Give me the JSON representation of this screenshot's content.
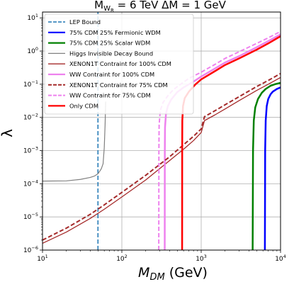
{
  "chart_data": {
    "type": "line",
    "title": {
      "prefix": "M",
      "subscript": "W",
      "subsubscript": "R",
      "mid": " = 6 TeV  ΔM = 1 GeV"
    },
    "xlabel": {
      "main": "M",
      "subscript": "DM",
      "units": " (GeV)"
    },
    "ylabel": "λ",
    "xscale": "log",
    "yscale": "log",
    "xlim": [
      10,
      10000
    ],
    "ylim": [
      1e-06,
      15
    ],
    "grid": true,
    "legend_position": "upper-left",
    "xticks": [
      {
        "value": 10,
        "base": "10",
        "exp": "1"
      },
      {
        "value": 100,
        "base": "10",
        "exp": "2"
      },
      {
        "value": 1000,
        "base": "10",
        "exp": "3"
      },
      {
        "value": 10000,
        "base": "10",
        "exp": "4"
      }
    ],
    "yticks": [
      {
        "value": 1e-06,
        "base": "10",
        "exp": "−6"
      },
      {
        "value": 1e-05,
        "base": "10",
        "exp": "−5"
      },
      {
        "value": 0.0001,
        "base": "10",
        "exp": "−4"
      },
      {
        "value": 0.001,
        "base": "10",
        "exp": "−3"
      },
      {
        "value": 0.01,
        "base": "10",
        "exp": "−2"
      },
      {
        "value": 0.1,
        "base": "10",
        "exp": "−1"
      },
      {
        "value": 1,
        "base": "10",
        "exp": "0"
      },
      {
        "value": 10,
        "base": "10",
        "exp": "1"
      }
    ],
    "series": [
      {
        "name": "LEP Bound",
        "color": "#1f77b4",
        "dash": "dashed",
        "width": 1.5,
        "x": [
          50,
          50
        ],
        "y": [
          1e-06,
          15
        ]
      },
      {
        "name": "75% CDM 25% Fermionic WDM",
        "color": "#0000ff",
        "dash": "solid",
        "width": 2.5,
        "x": [
          6350,
          6400,
          6500,
          6700,
          7000,
          7500,
          8000,
          9000,
          10000
        ],
        "y": [
          1e-06,
          0.001,
          0.008,
          0.022,
          0.036,
          0.05,
          0.06,
          0.072,
          0.08
        ]
      },
      {
        "name": "75% CDM 25% Scalar WDM",
        "color": "#008000",
        "dash": "solid",
        "width": 2.5,
        "x": [
          4450,
          4500,
          4600,
          4800,
          5200,
          5800,
          6500,
          7500,
          8500,
          10000
        ],
        "y": [
          1e-06,
          0.001,
          0.008,
          0.02,
          0.036,
          0.055,
          0.072,
          0.09,
          0.1,
          0.11
        ]
      },
      {
        "name": "Higgs Invisible Decay Bound",
        "color": "#808080",
        "dash": "solid",
        "width": 1.2,
        "x": [
          10,
          20,
          30,
          40,
          45,
          50,
          55,
          58,
          60,
          61.5,
          62.5
        ],
        "y": [
          0.00012,
          0.000122,
          0.000135,
          0.000155,
          0.00017,
          0.0002,
          0.00028,
          0.0004,
          0.0012,
          0.006,
          0.03
        ]
      },
      {
        "name": "XENON1T Contraint for 100% CDM",
        "color": "#a52a2a",
        "dash": "solid",
        "width": 1.3,
        "x": [
          10,
          20,
          40,
          60,
          100,
          200,
          400,
          600,
          800,
          1000,
          1100,
          1500,
          2000,
          3000,
          5000,
          7000,
          10000
        ],
        "y": [
          1.6e-06,
          3.5e-06,
          9e-06,
          1.7e-05,
          4e-05,
          0.00013,
          0.0005,
          0.0011,
          0.002,
          0.0035,
          0.008,
          0.012,
          0.018,
          0.032,
          0.065,
          0.1,
          0.16
        ]
      },
      {
        "name": "WW Contraint for 100% CDM",
        "color": "#ee82ee",
        "dash": "solid",
        "width": 2.5,
        "x": [
          347,
          348,
          350,
          360,
          380,
          420,
          500,
          600,
          800,
          1000,
          1500,
          2000,
          3000,
          5000,
          7000,
          10000
        ],
        "y": [
          1e-06,
          0.001,
          0.005,
          0.013,
          0.022,
          0.035,
          0.058,
          0.08,
          0.12,
          0.17,
          0.3,
          0.45,
          0.7,
          1.3,
          2,
          3.2
        ]
      },
      {
        "name": "XENON1T Contraint for 75% CDM",
        "color": "#a52a2a",
        "dash": "dashed",
        "width": 2.0,
        "x": [
          10,
          20,
          40,
          60,
          100,
          200,
          400,
          600,
          800,
          1000,
          1100,
          1500,
          2000,
          3000,
          5000,
          7000,
          10000
        ],
        "y": [
          2e-06,
          4.6e-06,
          1.2e-05,
          2.3e-05,
          5.5e-05,
          0.00018,
          0.00065,
          0.0015,
          0.0027,
          0.0045,
          0.0105,
          0.016,
          0.024,
          0.042,
          0.085,
          0.13,
          0.21
        ]
      },
      {
        "name": "WW Contraint for 75% CDM",
        "color": "#ee82ee",
        "dash": "dashed",
        "width": 2.0,
        "x": [
          292,
          293,
          295,
          305,
          330,
          380,
          450,
          550,
          700,
          1000,
          1500,
          2000,
          3000,
          5000,
          7000,
          10000
        ],
        "y": [
          1e-06,
          0.001,
          0.006,
          0.016,
          0.028,
          0.045,
          0.07,
          0.1,
          0.15,
          0.23,
          0.4,
          0.6,
          0.95,
          1.7,
          2.5,
          3.9
        ]
      },
      {
        "name": "Only CDM",
        "color": "#ff0000",
        "dash": "solid",
        "width": 2.5,
        "x": [
          575,
          576,
          578,
          590,
          620,
          700,
          850,
          1000,
          1500,
          2000,
          3000,
          5000,
          7000,
          10000
        ],
        "y": [
          1e-06,
          0.001,
          0.008,
          0.022,
          0.038,
          0.06,
          0.1,
          0.14,
          0.25,
          0.38,
          0.6,
          1.1,
          1.7,
          2.8
        ]
      }
    ]
  }
}
